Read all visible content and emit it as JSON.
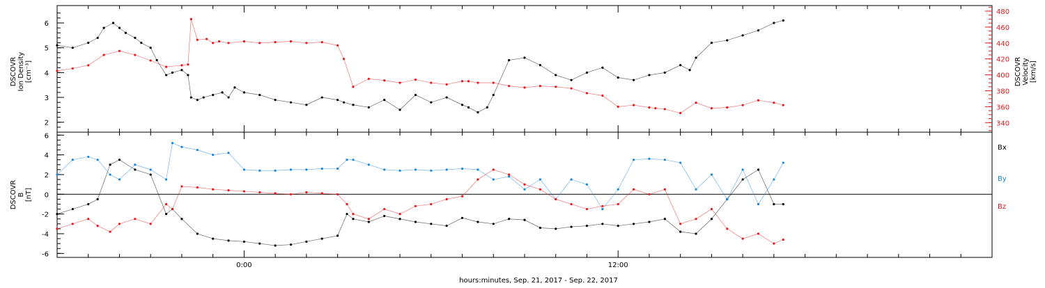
{
  "chart_data": [
    {
      "type": "scatter",
      "title": "",
      "xlabel": "hours:minutes, Sep. 21, 2017 - Sep. 22, 2017",
      "ylabel_left": [
        "DSCOVR",
        "Ion Density",
        "[cm⁻³]"
      ],
      "ylabel_right": [
        "DSCOVR",
        "Velocity",
        "[km/s]"
      ],
      "x_ticks": [
        {
          "hour": 0,
          "label": "0:00"
        },
        {
          "hour": 12,
          "label": "12:00"
        }
      ],
      "xlim_hours": [
        -6,
        24
      ],
      "ylim_left": [
        1.6,
        6.7
      ],
      "ylim_right": [
        328,
        487
      ],
      "yticks_left": [
        "2",
        "3",
        "4",
        "5",
        "6"
      ],
      "yticks_right": [
        "340",
        "360",
        "380",
        "400",
        "420",
        "440",
        "460",
        "480"
      ],
      "series": [
        {
          "name": "",
          "axis": "left",
          "color": "#000000",
          "hours": [
            -6,
            -5.5,
            -5,
            -4.7,
            -4.5,
            -4.2,
            -4,
            -3.8,
            -3.5,
            -3.3,
            -3,
            -2.8,
            -2.5,
            -2.3,
            -2,
            -1.8,
            -1.7,
            -1.5,
            -1.3,
            -1,
            -0.7,
            -0.5,
            -0.3,
            0,
            0.5,
            1,
            1.5,
            2,
            2.5,
            3,
            3.2,
            3.5,
            4,
            4.5,
            5,
            5.5,
            6,
            6.5,
            7,
            7.2,
            7.5,
            7.8,
            8,
            8.5,
            9,
            9.5,
            10,
            10.5,
            11,
            11.5,
            12,
            12.5,
            13,
            13.5,
            14,
            14.3,
            14.5,
            15,
            15.5,
            16,
            16.5,
            17,
            17.3
          ],
          "values": [
            5.1,
            5.0,
            5.2,
            5.4,
            5.8,
            6.0,
            5.8,
            5.6,
            5.4,
            5.2,
            5.0,
            4.5,
            3.9,
            4.0,
            4.1,
            3.9,
            3.0,
            2.9,
            3.0,
            3.1,
            3.2,
            3.0,
            3.4,
            3.2,
            3.1,
            2.9,
            2.8,
            2.7,
            3.0,
            2.9,
            2.8,
            2.7,
            2.6,
            2.9,
            2.5,
            3.1,
            2.8,
            3.0,
            2.7,
            2.6,
            2.4,
            2.6,
            3.1,
            4.5,
            4.6,
            4.3,
            3.9,
            3.7,
            4.0,
            4.2,
            3.8,
            3.7,
            3.9,
            4.0,
            4.3,
            4.1,
            4.6,
            5.2,
            5.3,
            5.5,
            5.7,
            6.0,
            6.1
          ]
        },
        {
          "name": "",
          "axis": "right",
          "color": "#e41a1c",
          "hours": [
            -6,
            -5.5,
            -5,
            -4.5,
            -4,
            -3.5,
            -3,
            -2.5,
            -2,
            -1.8,
            -1.7,
            -1.5,
            -1.2,
            -1,
            -0.8,
            -0.5,
            0,
            0.5,
            1,
            1.5,
            2,
            2.5,
            3,
            3.2,
            3.5,
            4,
            4.5,
            5,
            5.5,
            6,
            6.5,
            7,
            7.2,
            7.5,
            8,
            8.5,
            9,
            9.5,
            10,
            10.5,
            11,
            11.5,
            12,
            12.5,
            13,
            13.2,
            13.5,
            14,
            14.5,
            15,
            15.5,
            16,
            16.5,
            17,
            17.3
          ],
          "values": [
            405,
            408,
            412,
            425,
            430,
            425,
            418,
            410,
            412,
            413,
            470,
            444,
            445,
            440,
            442,
            440,
            442,
            440,
            441,
            442,
            440,
            441,
            437,
            420,
            385,
            395,
            393,
            390,
            394,
            390,
            388,
            392,
            392,
            390,
            390,
            386,
            384,
            386,
            385,
            383,
            377,
            374,
            360,
            362,
            359,
            358,
            357,
            352,
            365,
            358,
            359,
            362,
            368,
            365,
            362
          ]
        }
      ]
    },
    {
      "type": "scatter",
      "title": "",
      "xlabel": "hours:minutes, Sep. 21, 2017 - Sep. 22, 2017",
      "ylabel": [
        "DSCOVR",
        "B",
        "[nT]"
      ],
      "xlim_hours": [
        -6,
        24
      ],
      "ylim": [
        -6.4,
        6.3
      ],
      "yticks": [
        "6",
        "4",
        "2",
        "0",
        "-2",
        "-4",
        "-6"
      ],
      "zero_line": true,
      "legend_placement": "right",
      "series": [
        {
          "name": "Bx",
          "color": "#000000",
          "hours": [
            -6,
            -5.5,
            -5,
            -4.7,
            -4.3,
            -4,
            -3.5,
            -3,
            -2.5,
            -2.3,
            -2,
            -1.5,
            -1,
            -0.5,
            0,
            0.5,
            1,
            1.5,
            2,
            2.5,
            3,
            3.3,
            3.5,
            4,
            4.5,
            5,
            5.5,
            6,
            6.5,
            7,
            7.5,
            8,
            8.5,
            9,
            9.5,
            10,
            10.5,
            11,
            11.5,
            12,
            12.5,
            13,
            13.5,
            14,
            14.5,
            15,
            15.5,
            16,
            16.5,
            17,
            17.3
          ],
          "values": [
            -2,
            -1.5,
            -1,
            -0.5,
            3,
            3.5,
            2.5,
            2,
            -2,
            -1.5,
            -2.5,
            -4,
            -4.5,
            -4.7,
            -4.8,
            -5,
            -5.2,
            -5.1,
            -4.8,
            -4.5,
            -4.2,
            -2,
            -2.5,
            -2.8,
            -2.2,
            -2.5,
            -2.8,
            -3,
            -3.2,
            -2.4,
            -2.8,
            -3,
            -2.5,
            -2.6,
            -3.4,
            -3.5,
            -3.3,
            -3.2,
            -3.0,
            -3.2,
            -3.0,
            -2.8,
            -2.5,
            -3.8,
            -4.0,
            -2.5,
            -0.5,
            1.5,
            2.5,
            -1,
            -1
          ]
        },
        {
          "name": "By",
          "color": "#1c86d8",
          "hours": [
            -6,
            -5.5,
            -5,
            -4.7,
            -4.3,
            -4,
            -3.5,
            -3,
            -2.5,
            -2.3,
            -2,
            -1.5,
            -1,
            -0.5,
            0,
            0.5,
            1,
            1.5,
            2,
            2.5,
            3,
            3.3,
            3.5,
            4,
            4.5,
            5,
            5.5,
            6,
            6.5,
            7,
            7.5,
            8,
            8.5,
            9,
            9.5,
            10,
            10.5,
            11,
            11.5,
            12,
            12.5,
            13,
            13.5,
            14,
            14.5,
            15,
            15.5,
            16,
            16.5,
            17,
            17.3
          ],
          "values": [
            2,
            3.5,
            3.8,
            3.5,
            2,
            1.5,
            3.0,
            2.5,
            1.5,
            5.2,
            4.8,
            4.5,
            4.0,
            4.2,
            2.5,
            2.4,
            2.4,
            2.5,
            2.5,
            2.6,
            2.6,
            3.5,
            3.5,
            3.0,
            2.5,
            2.4,
            2.5,
            2.4,
            2.5,
            2.6,
            2.5,
            1.5,
            1.8,
            0.5,
            1.5,
            -0.5,
            1.5,
            1.0,
            -1.5,
            0.5,
            3.5,
            3.6,
            3.5,
            3.2,
            0.5,
            2.0,
            -0.5,
            2.5,
            -1.0,
            1.5,
            3.2
          ]
        },
        {
          "name": "Bz",
          "color": "#e41a1c",
          "hours": [
            -6,
            -5.5,
            -5,
            -4.7,
            -4.3,
            -4,
            -3.5,
            -3,
            -2.5,
            -2.3,
            -2,
            -1.5,
            -1,
            -0.5,
            0,
            0.5,
            1,
            1.5,
            2,
            2.5,
            3,
            3.3,
            3.5,
            4,
            4.5,
            5,
            5.5,
            6,
            6.5,
            7,
            7.5,
            8,
            8.5,
            9,
            9.5,
            10,
            10.5,
            11,
            11.5,
            12,
            12.5,
            13,
            13.5,
            14,
            14.5,
            15,
            15.5,
            16,
            16.5,
            17,
            17.3
          ],
          "values": [
            -3.5,
            -3.0,
            -2.5,
            -3.2,
            -3.8,
            -3.0,
            -2.5,
            -3.0,
            -1.0,
            -1.5,
            0.8,
            0.7,
            0.5,
            0.4,
            0.3,
            0.2,
            0.1,
            0.0,
            0.2,
            0.1,
            0.0,
            -1.0,
            -2.0,
            -2.5,
            -1.5,
            -2.0,
            -1.2,
            -1.0,
            -0.5,
            -0.2,
            1.5,
            2.5,
            2.0,
            1.0,
            0.5,
            -0.5,
            -1.0,
            -1.5,
            -1.2,
            -1.0,
            0.5,
            0.0,
            0.5,
            -3.0,
            -2.5,
            -1.5,
            -3.5,
            -4.5,
            -4.0,
            -5.0,
            -4.6
          ]
        }
      ]
    }
  ]
}
